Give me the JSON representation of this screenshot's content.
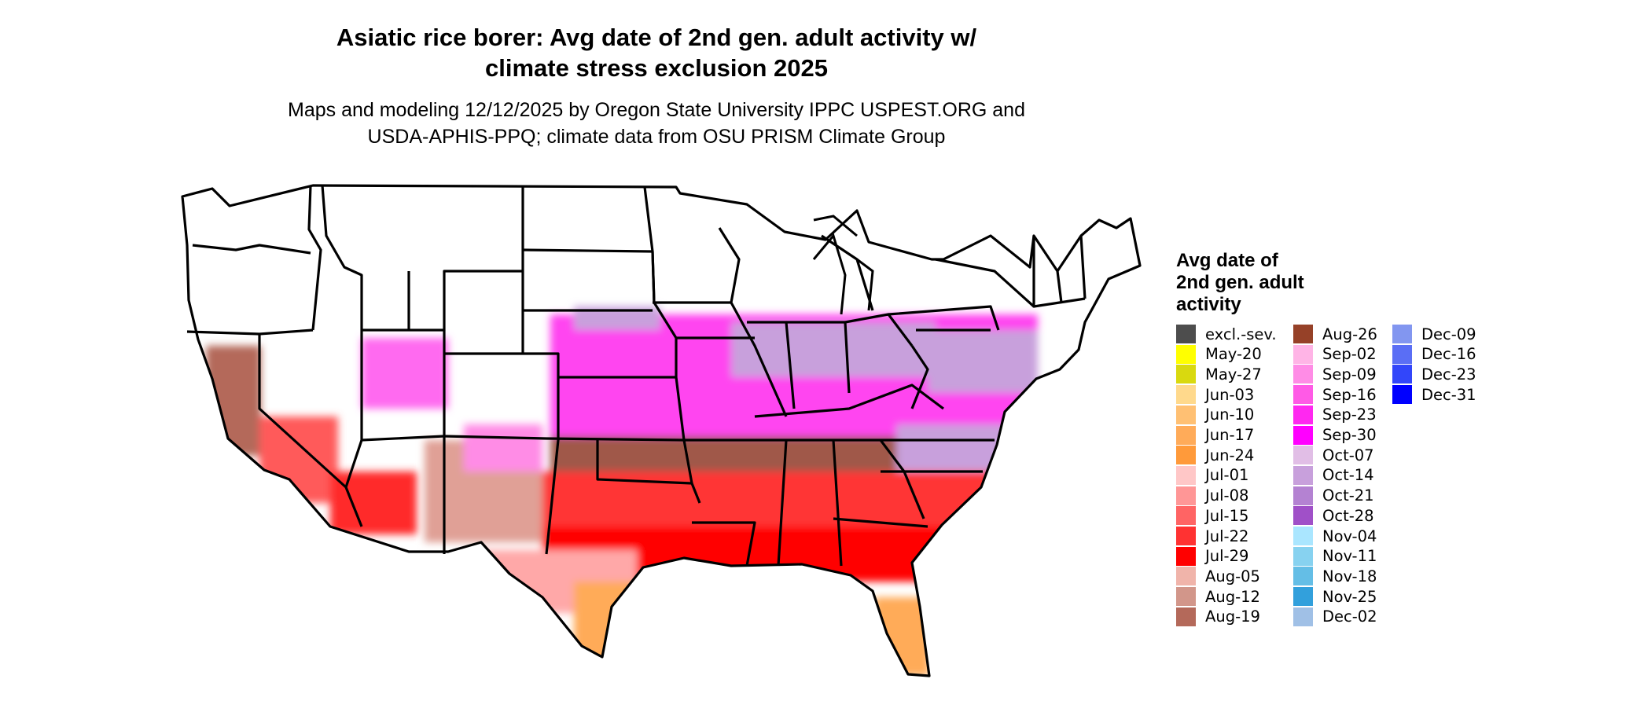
{
  "header": {
    "title_line1": "Asiatic rice borer: Avg date of 2nd gen. adult activity w/",
    "title_line2": "climate stress exclusion 2025",
    "subtitle_line1": "Maps and modeling 12/12/2025 by Oregon State University IPPC USPEST.ORG and",
    "subtitle_line2": "USDA-APHIS-PPQ; climate data from OSU PRISM Climate Group"
  },
  "legend": {
    "title_line1": "Avg date of",
    "title_line2": "2nd gen. adult",
    "title_line3": "activity",
    "columns": [
      [
        {
          "label": "excl.-sev.",
          "color": "#4d4d4d"
        },
        {
          "label": "May-20",
          "color": "#ffff00"
        },
        {
          "label": "May-27",
          "color": "#d9d90f"
        },
        {
          "label": "Jun-03",
          "color": "#ffd98c"
        },
        {
          "label": "Jun-10",
          "color": "#ffc073"
        },
        {
          "label": "Jun-17",
          "color": "#ffab59"
        },
        {
          "label": "Jun-24",
          "color": "#ff9a3a"
        },
        {
          "label": "Jul-01",
          "color": "#ffc7c7"
        },
        {
          "label": "Jul-08",
          "color": "#ff9696"
        },
        {
          "label": "Jul-15",
          "color": "#ff6464"
        },
        {
          "label": "Jul-22",
          "color": "#ff3232"
        },
        {
          "label": "Jul-29",
          "color": "#ff0000"
        },
        {
          "label": "Aug-05",
          "color": "#f0b4aa"
        },
        {
          "label": "Aug-12",
          "color": "#d2968a"
        },
        {
          "label": "Aug-19",
          "color": "#b4695a"
        }
      ],
      [
        {
          "label": "Aug-26",
          "color": "#964128"
        },
        {
          "label": "Sep-02",
          "color": "#ffb4e6"
        },
        {
          "label": "Sep-09",
          "color": "#ff8ce6"
        },
        {
          "label": "Sep-16",
          "color": "#ff5ae6"
        },
        {
          "label": "Sep-23",
          "color": "#ff28f0"
        },
        {
          "label": "Sep-30",
          "color": "#ff00ff"
        },
        {
          "label": "Oct-07",
          "color": "#e1bee6"
        },
        {
          "label": "Oct-14",
          "color": "#c8a0dc"
        },
        {
          "label": "Oct-21",
          "color": "#b482d2"
        },
        {
          "label": "Oct-28",
          "color": "#a050c8"
        },
        {
          "label": "Nov-04",
          "color": "#aae6ff"
        },
        {
          "label": "Nov-11",
          "color": "#87d2f0"
        },
        {
          "label": "Nov-18",
          "color": "#64bee6"
        },
        {
          "label": "Nov-25",
          "color": "#32a0dc"
        },
        {
          "label": "Dec-02",
          "color": "#a0c0e6"
        }
      ],
      [
        {
          "label": "Dec-09",
          "color": "#8296f0"
        },
        {
          "label": "Dec-16",
          "color": "#5a6ef5"
        },
        {
          "label": "Dec-23",
          "color": "#3246fa"
        },
        {
          "label": "Dec-31",
          "color": "#0000ff"
        }
      ]
    ]
  }
}
